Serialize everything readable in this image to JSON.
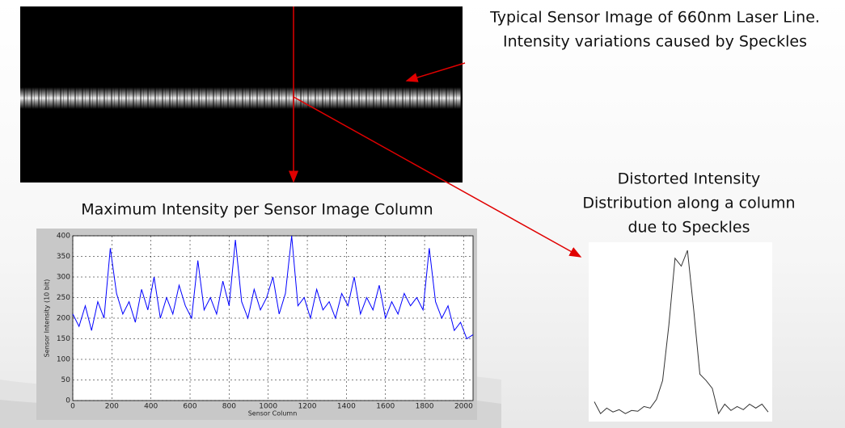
{
  "sensor_image": {
    "caption": [
      "Typical Sensor Image of 660nm Laser Line.",
      "Intensity variations caused by Speckles"
    ]
  },
  "chart_data": [
    {
      "type": "line",
      "title": "Maximum Intensity per Sensor Image Column",
      "xlabel": "Sensor Column",
      "ylabel": "Sensor Intensity (10 bit)",
      "x": [
        0,
        32,
        64,
        96,
        128,
        160,
        192,
        224,
        256,
        288,
        320,
        352,
        384,
        416,
        448,
        480,
        512,
        544,
        576,
        608,
        640,
        672,
        704,
        736,
        768,
        800,
        832,
        864,
        896,
        928,
        960,
        992,
        1024,
        1056,
        1088,
        1120,
        1152,
        1184,
        1216,
        1248,
        1280,
        1312,
        1344,
        1376,
        1408,
        1440,
        1472,
        1504,
        1536,
        1568,
        1600,
        1632,
        1664,
        1696,
        1728,
        1760,
        1792,
        1824,
        1856,
        1888,
        1920,
        1952,
        1984,
        2016,
        2048
      ],
      "series": [
        {
          "color": "#0000ff",
          "values": [
            210,
            180,
            230,
            170,
            240,
            200,
            370,
            260,
            210,
            240,
            190,
            270,
            220,
            300,
            200,
            250,
            210,
            280,
            230,
            200,
            340,
            220,
            250,
            210,
            290,
            230,
            390,
            240,
            200,
            270,
            220,
            250,
            300,
            210,
            260,
            400,
            230,
            250,
            200,
            270,
            220,
            240,
            200,
            260,
            230,
            300,
            210,
            250,
            220,
            280,
            200,
            240,
            210,
            260,
            230,
            250,
            220,
            370,
            240,
            200,
            230,
            170,
            190,
            150,
            160
          ]
        }
      ],
      "xlim": [
        0,
        2048
      ],
      "ylim": [
        0,
        400
      ],
      "xticks": [
        0,
        200,
        400,
        600,
        800,
        1000,
        1200,
        1400,
        1600,
        1800,
        2000
      ],
      "yticks": [
        0,
        50,
        100,
        150,
        200,
        250,
        300,
        350,
        400
      ],
      "grid": true
    },
    {
      "type": "profile",
      "title": [
        "Distorted Intensity",
        "Distribution along a column",
        "due to Speckles"
      ],
      "color": "#333333",
      "values": [
        23,
        8,
        15,
        10,
        13,
        8,
        12,
        11,
        17,
        15,
        26,
        50,
        120,
        205,
        195,
        215,
        140,
        58,
        50,
        40,
        8,
        20,
        12,
        17,
        13,
        20,
        15,
        20,
        10
      ]
    }
  ]
}
